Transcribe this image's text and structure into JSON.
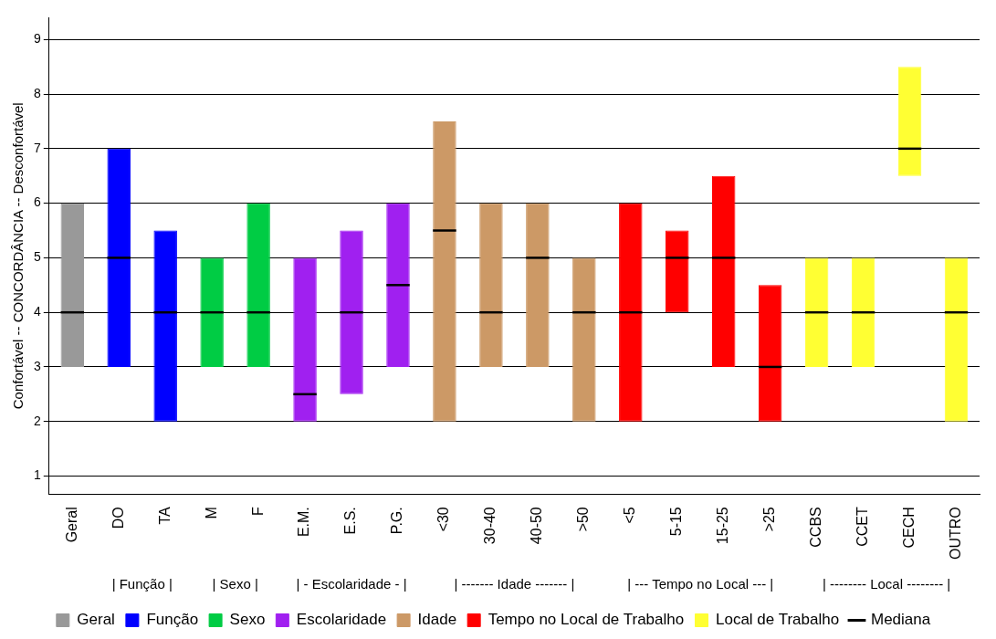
{
  "chart_data": {
    "type": "box",
    "ylabel": "Confortável -- CONCORDÂNCIA -- Desconfortável",
    "categories": [
      "Geral",
      "DO",
      "TA",
      "M",
      "F",
      "E.M.",
      "E.S.",
      "P.G.",
      "<30",
      "30-40",
      "40-50",
      ">50",
      "<5",
      "5-15",
      "15-25",
      ">25",
      "CCBS",
      "CCET",
      "CECH",
      "OUTRO"
    ],
    "series": [
      {
        "name": "Geral",
        "color": "#999999",
        "boxes": [
          {
            "low": 3,
            "q1": 3,
            "median": 4,
            "q3": 6,
            "high": 6
          },
          null,
          null,
          null,
          null,
          null,
          null,
          null,
          null,
          null,
          null,
          null,
          null,
          null,
          null,
          null,
          null,
          null,
          null,
          null
        ]
      },
      {
        "name": "Função",
        "color": "#0000ff",
        "boxes": [
          null,
          {
            "low": 3,
            "q1": 3,
            "median": 5,
            "q3": 7,
            "high": 7
          },
          {
            "low": 2,
            "q1": 2,
            "median": 4,
            "q3": 5.5,
            "high": 5.5
          },
          null,
          null,
          null,
          null,
          null,
          null,
          null,
          null,
          null,
          null,
          null,
          null,
          null,
          null,
          null,
          null,
          null
        ]
      },
      {
        "name": "Sexo",
        "color": "#00cc44",
        "boxes": [
          null,
          null,
          null,
          {
            "low": 3,
            "q1": 3,
            "median": 4,
            "q3": 5,
            "high": 5
          },
          {
            "low": 3,
            "q1": 3,
            "median": 4,
            "q3": 6,
            "high": 6
          },
          null,
          null,
          null,
          null,
          null,
          null,
          null,
          null,
          null,
          null,
          null,
          null,
          null,
          null,
          null
        ]
      },
      {
        "name": "Escolaridade",
        "color": "#a020f0",
        "boxes": [
          null,
          null,
          null,
          null,
          null,
          {
            "low": 2,
            "q1": 2,
            "median": 2.5,
            "q3": 5,
            "high": 5
          },
          {
            "low": 2.5,
            "q1": 2.5,
            "median": 4,
            "q3": 5.5,
            "high": 5.5
          },
          {
            "low": 3,
            "q1": 3,
            "median": 4.5,
            "q3": 6,
            "high": 6
          },
          null,
          null,
          null,
          null,
          null,
          null,
          null,
          null,
          null,
          null,
          null,
          null
        ]
      },
      {
        "name": "Idade",
        "color": "#cc9966",
        "boxes": [
          null,
          null,
          null,
          null,
          null,
          null,
          null,
          null,
          {
            "low": 2,
            "q1": 2,
            "median": 5.5,
            "q3": 7.5,
            "high": 7.5
          },
          {
            "low": 3,
            "q1": 3,
            "median": 4,
            "q3": 6,
            "high": 6
          },
          {
            "low": 3,
            "q1": 3,
            "median": 5,
            "q3": 6,
            "high": 6
          },
          {
            "low": 2,
            "q1": 2,
            "median": 4,
            "q3": 5,
            "high": 5
          },
          null,
          null,
          null,
          null,
          null,
          null,
          null,
          null
        ]
      },
      {
        "name": "Tempo no Local de Trabalho",
        "color": "#ff0000",
        "boxes": [
          null,
          null,
          null,
          null,
          null,
          null,
          null,
          null,
          null,
          null,
          null,
          null,
          {
            "low": 2,
            "q1": 2,
            "median": 4,
            "q3": 6,
            "high": 6
          },
          {
            "low": 4,
            "q1": 4,
            "median": 5,
            "q3": 5.5,
            "high": 5.5
          },
          {
            "low": 3,
            "q1": 3,
            "median": 5,
            "q3": 6.5,
            "high": 6.5
          },
          {
            "low": 2,
            "q1": 2,
            "median": 3,
            "q3": 4.5,
            "high": 4.5
          },
          null,
          null,
          null,
          null
        ]
      },
      {
        "name": "Local de Trabalho",
        "color": "#ffff33",
        "boxes": [
          null,
          null,
          null,
          null,
          null,
          null,
          null,
          null,
          null,
          null,
          null,
          null,
          null,
          null,
          null,
          null,
          {
            "low": 3,
            "q1": 3,
            "median": 4,
            "q3": 5,
            "high": 5
          },
          {
            "low": 3,
            "q1": 3,
            "median": 4,
            "q3": 5,
            "high": 5
          },
          {
            "low": 6.5,
            "q1": 6.5,
            "median": 7,
            "q3": 8.5,
            "high": 8.5
          },
          {
            "low": 2,
            "q1": 2,
            "median": 4,
            "q3": 5,
            "high": 5
          }
        ]
      }
    ],
    "annotations": [
      "| Função |",
      "| Sexo |",
      "| - Escolaridade - |",
      "| ------- Idade ------- |",
      "| --- Tempo no Local --- |",
      "| -------- Local -------- |",
      "Mediana"
    ],
    "ylim": [
      0.67,
      9.4
    ],
    "yticks": [
      1,
      2,
      3,
      4,
      5,
      6,
      7,
      8,
      9
    ],
    "grid": "y",
    "legend": "bottom"
  }
}
